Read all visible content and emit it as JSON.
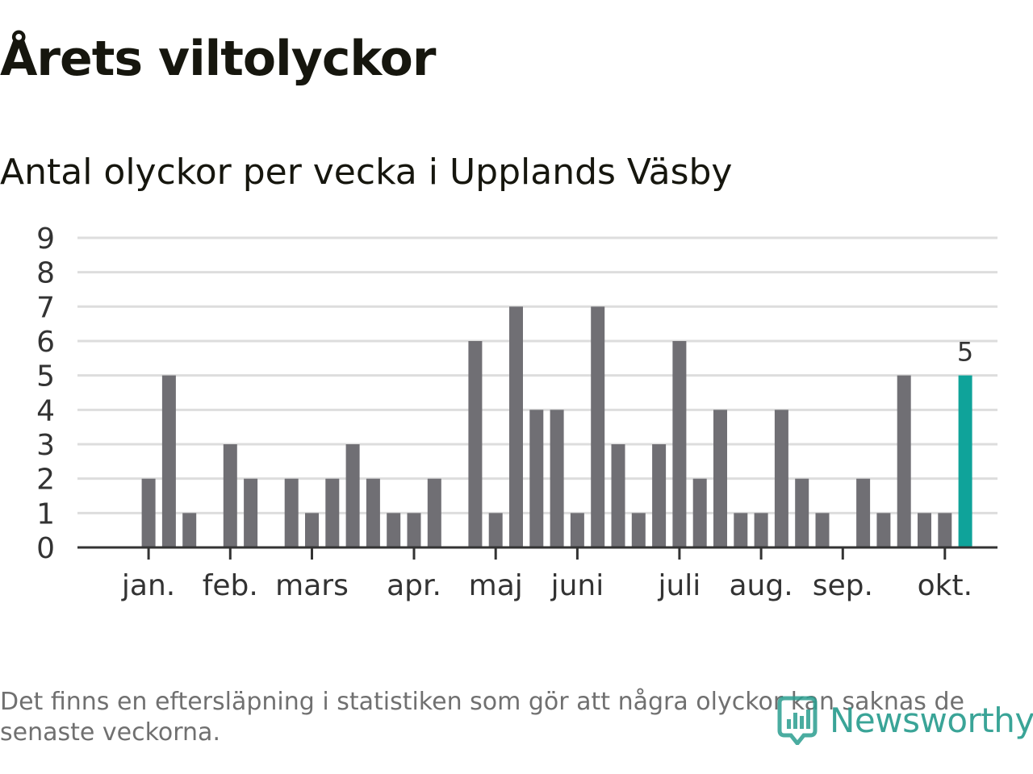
{
  "title": "Årets viltolyckor",
  "subtitle": "Antal olyckor per vecka i Upplands Väsby",
  "footnote": "Det finns en eftersläpning i statistiken som gör att några olyckor kan saknas de senaste veckorna.",
  "brand": {
    "name": "Newsworthy",
    "icon": "newsworthy-logo-icon",
    "color": "#2a9d8f"
  },
  "colors": {
    "bar": "#706f74",
    "highlight": "#0fa39a",
    "grid": "#dddddd",
    "axis": "#333333"
  },
  "chart_data": {
    "type": "bar",
    "xlabel": "",
    "ylabel": "",
    "ylim": [
      0,
      9
    ],
    "yticks": [
      "0",
      "1",
      "2",
      "3",
      "4",
      "5",
      "6",
      "7",
      "8",
      "9"
    ],
    "grid": true,
    "week_count": 45,
    "values": [
      null,
      null,
      2,
      5,
      1,
      null,
      3,
      2,
      null,
      2,
      1,
      2,
      3,
      2,
      1,
      1,
      2,
      null,
      6,
      1,
      7,
      4,
      4,
      1,
      7,
      3,
      1,
      3,
      6,
      2,
      4,
      1,
      1,
      4,
      2,
      1,
      null,
      2,
      1,
      5,
      1,
      1,
      5
    ],
    "highlight_index": 42,
    "highlight_label": "5",
    "months": [
      {
        "label": "jan.",
        "week": 2
      },
      {
        "label": "feb.",
        "week": 6
      },
      {
        "label": "mars",
        "week": 10
      },
      {
        "label": "apr.",
        "week": 15
      },
      {
        "label": "maj",
        "week": 19
      },
      {
        "label": "juni",
        "week": 23
      },
      {
        "label": "juli",
        "week": 28
      },
      {
        "label": "aug.",
        "week": 32
      },
      {
        "label": "sep.",
        "week": 36
      },
      {
        "label": "okt.",
        "week": 41
      }
    ]
  }
}
